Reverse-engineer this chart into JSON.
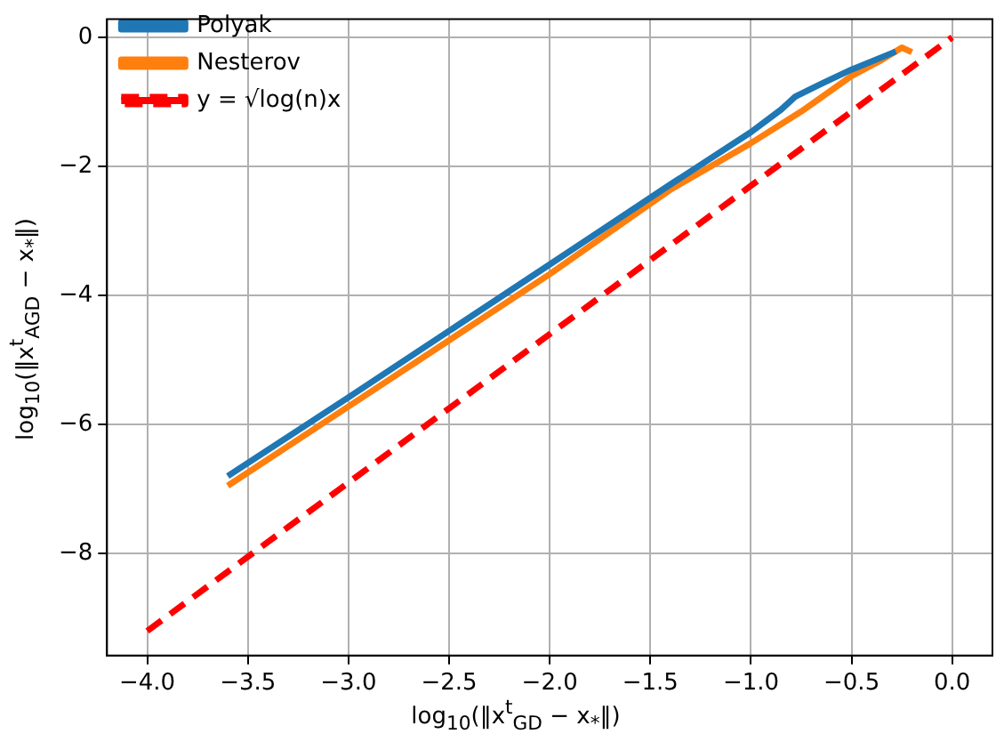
{
  "chart_data": {
    "type": "line",
    "xlabel": "log$_{10}$(‖x$^{t}$$_{GD}$ − x$_{*}$‖)",
    "ylabel": "log$_{10}$(‖x$^{t}$$_{AGD}$ − x$_{*}$‖)",
    "series": [
      {
        "name": "Polyak",
        "color": "#1f77b4",
        "x": [
          -3.6,
          -3.0,
          -2.0,
          -1.4,
          -1.0,
          -0.85,
          -0.78,
          -0.65,
          -0.5,
          -0.28
        ],
        "values": [
          -6.8,
          -5.58,
          -3.52,
          -2.28,
          -1.47,
          -1.12,
          -0.92,
          -0.72,
          -0.5,
          -0.22
        ]
      },
      {
        "name": "Nesterov",
        "color": "#ff7f0e",
        "x": [
          -3.6,
          -3.0,
          -2.0,
          -1.4,
          -1.0,
          -0.75,
          -0.5,
          -0.35,
          -0.25,
          -0.2
        ],
        "values": [
          -6.95,
          -5.72,
          -3.67,
          -2.36,
          -1.64,
          -1.15,
          -0.6,
          -0.35,
          -0.16,
          -0.23
        ]
      },
      {
        "name": "y = √log(n)x",
        "color": "#ff0000",
        "line_style": "dashed",
        "x": [
          -4.0,
          0.0
        ],
        "values": [
          -9.2,
          0.0
        ]
      }
    ],
    "xlim": [
      -4.2,
      0.2
    ],
    "xticks": [
      {
        "value": -4,
        "label": "−4.0"
      },
      {
        "value": -3.5,
        "label": "−3.5"
      },
      {
        "value": -3,
        "label": "−3.0"
      },
      {
        "value": -2.5,
        "label": "−2.5"
      },
      {
        "value": -2,
        "label": "−2.0"
      },
      {
        "value": -1.5,
        "label": "−1.5"
      },
      {
        "value": -1,
        "label": "−1.0"
      },
      {
        "value": -0.5,
        "label": "−0.5"
      },
      {
        "value": 0,
        "label": "0.0"
      }
    ],
    "ylim": [
      -9.58,
      0.28
    ],
    "yticks": [
      {
        "value": -8,
        "label": "−8"
      },
      {
        "value": -6,
        "label": "−6"
      },
      {
        "value": -4,
        "label": "−4"
      },
      {
        "value": -2,
        "label": "−2"
      },
      0
    ],
    "grid": true,
    "legend": "top left",
    "marker": "none",
    "line_style": "solid"
  }
}
